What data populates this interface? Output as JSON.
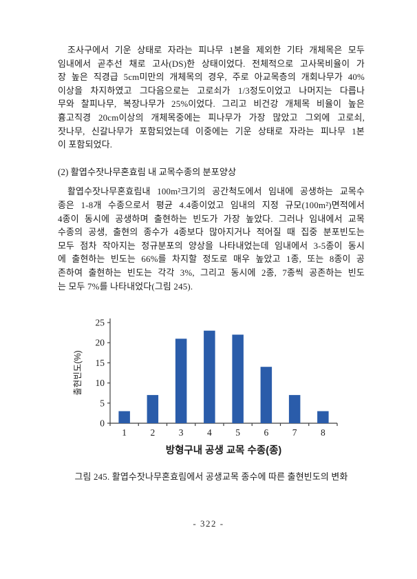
{
  "document": {
    "paragraph_1": {
      "lines": [
        "조사구에서 기운 상태로 자라는 피나무 1본을 제외한 기타 개체목은 모두",
        "임내에서 곧추선 채로 고사(DS)한 상태이었다. 전체적으로 고사목비율이 가",
        "장 높은 직경급 5cm미만의 개체목의 경우, 주로 아교목층의 개회나무가 40%",
        "이상을 차지하였고 그다음으로는 고로쇠가 1/3정도이었고 나머지는 다릅나",
        "무와 찰피나무, 복장나무가 25%이었다. 그리고 비건강 개체목 비율이 높은",
        "흉고직경 20cm이상의 개체목중에는 피나무가 가장 많았고 그외에 고로쇠,",
        "잣나무, 신갈나무가 포함되었는데 이중에는 기운 상태로 자라는 피나무 1본",
        "이 포함되었다."
      ]
    },
    "section_heading": "(2) 활엽수잣나무혼효림 내 교목수종의 분포양상",
    "paragraph_2": {
      "lines": [
        "활엽수잣나무혼효림내 100m²크기의 공간척도에서 임내에 공생하는 교목수",
        "종은 1-8개 수종으로서  평균 4.4종이었고 임내의 지정 규모(100m²)면적에서",
        "4종이 동시에 공생하며 출현하는 빈도가 가장 높았다. 그러나 임내에서 교목",
        "수종의 공생, 출현의 종수가 4종보다 많아지거나 적어질 때 집중 분포빈도는",
        "모두 점차 작아지는 정규분포의 양상을 나타내었는데 임내에서 3-5종이 동시",
        "에 출현하는 빈도는 66%를 차지할 정도로 매우 높았고 1종,  또는 8종이 공",
        "존하여 출현하는 빈도는 각각 3%, 그리고 동시에 2종, 7종씩 공존하는 빈도",
        "는 모두 7%를 나타내었다(그림 245)."
      ]
    },
    "figure_caption": "그림 245. 활엽수잣나무혼효림에서 공생교목 종수에 따른 출현빈도의 변화"
  },
  "chart_data": {
    "type": "bar",
    "categories": [
      "1",
      "2",
      "3",
      "4",
      "5",
      "6",
      "7",
      "8"
    ],
    "values": [
      3,
      7,
      21,
      23,
      22,
      14,
      7,
      3
    ],
    "title": "",
    "xlabel": "방형구내 공생 교목 수종(종)",
    "ylabel": "출현빈도(%)",
    "ylim": [
      0,
      25
    ],
    "yticks": [
      0,
      5,
      10,
      15,
      20,
      25
    ],
    "bar_color": "#2a5caa",
    "axis_color": "#3f3f3f",
    "grid": false,
    "legend": false
  },
  "page": {
    "number": "- 322 -"
  }
}
